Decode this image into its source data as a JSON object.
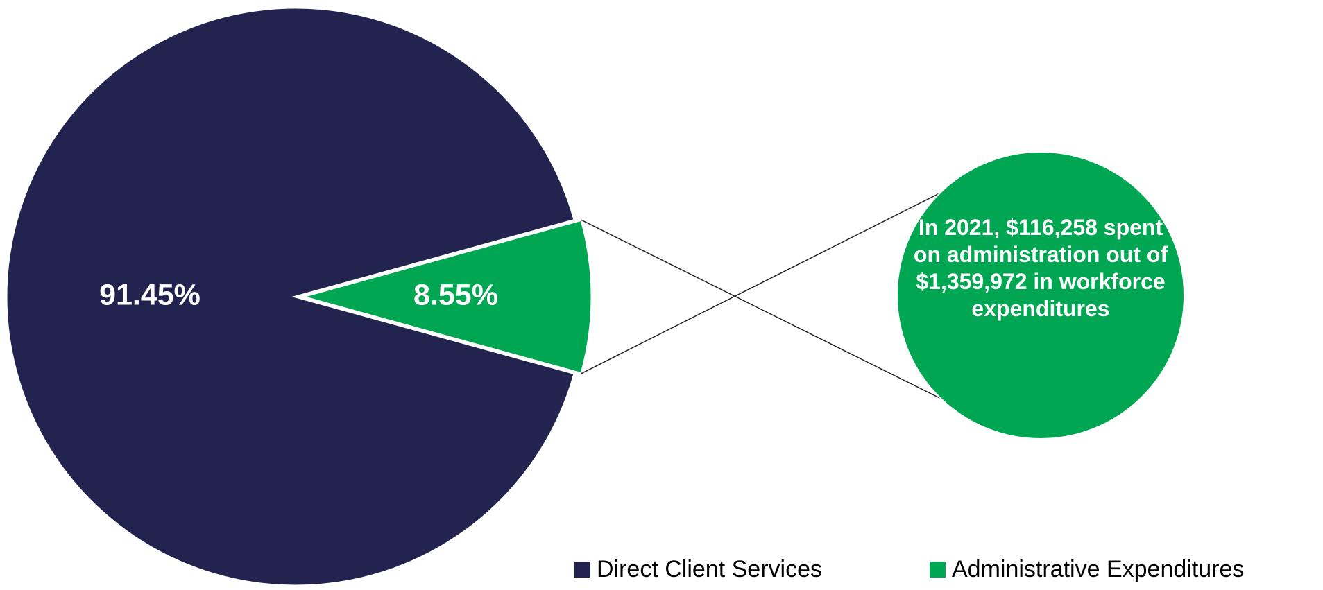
{
  "chart_data": {
    "type": "pie",
    "categories": [
      "Direct Client Services",
      "Administrative Expenditures"
    ],
    "values": [
      91.45,
      8.55
    ],
    "value_labels": [
      "91.45%",
      "8.55%"
    ],
    "colors": [
      "#22244f",
      "#00a651"
    ],
    "annotation": "In 2021, $116,258 spent on administration out of $1,359,972 in workforce expenditures",
    "legend": "bottom-right"
  }
}
